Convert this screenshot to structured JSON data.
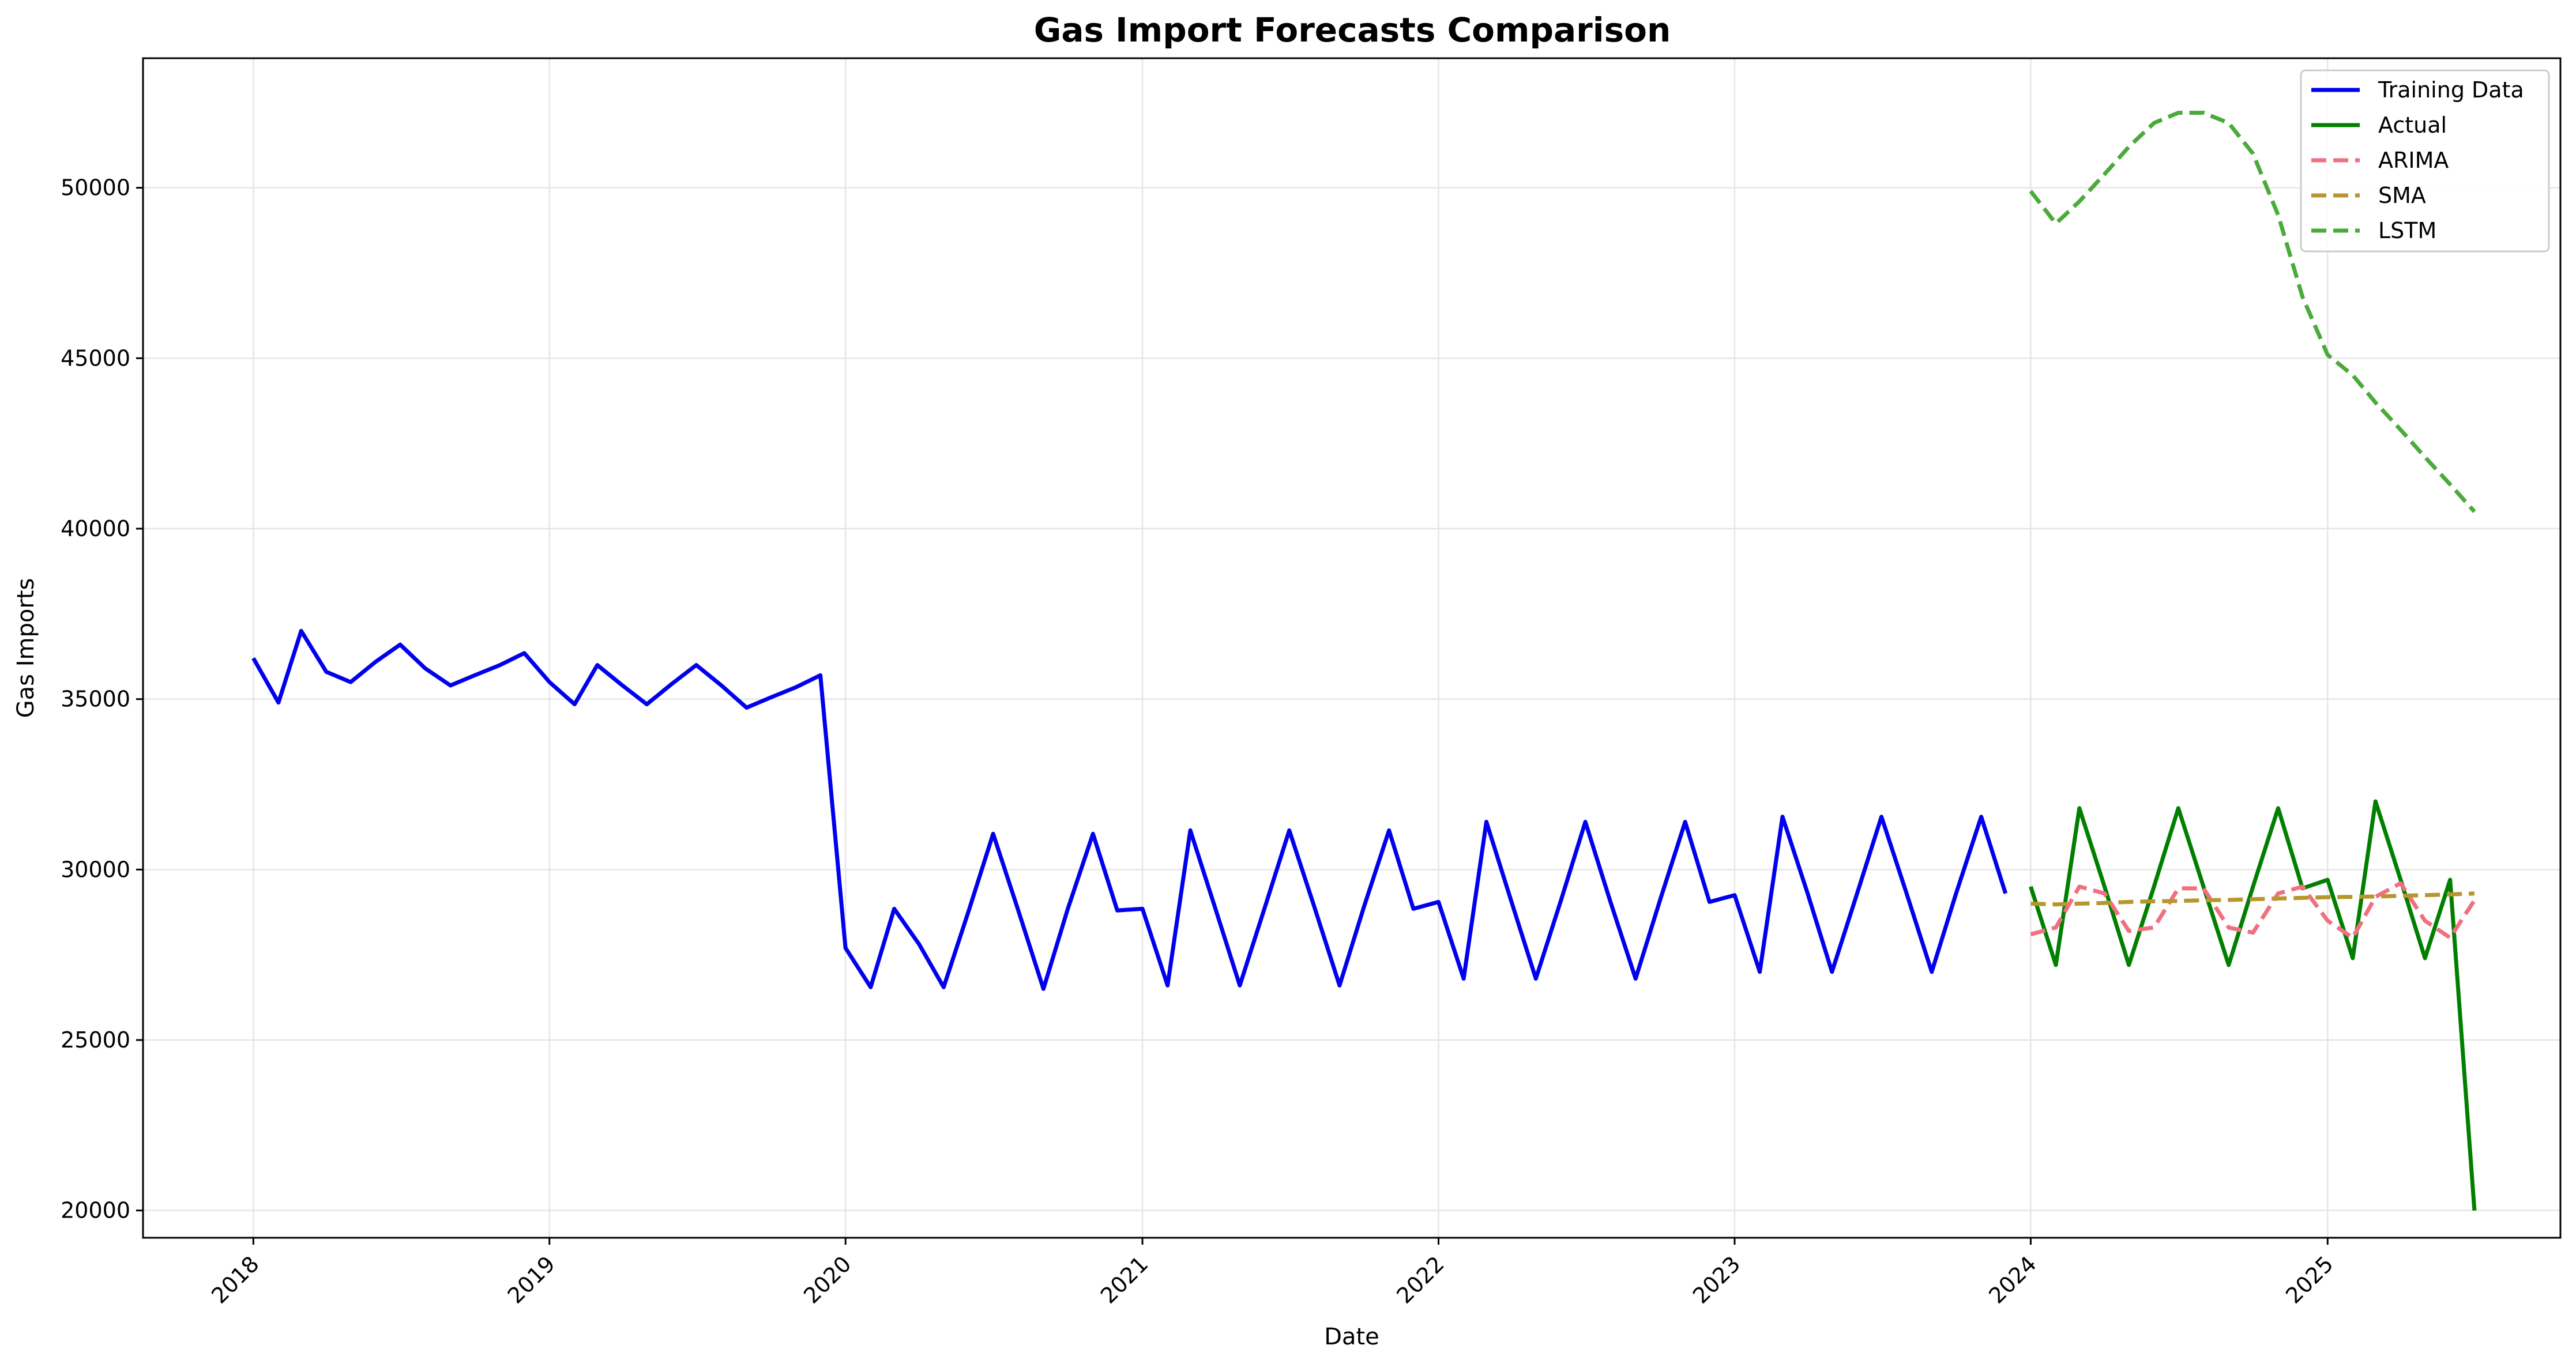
{
  "colors": {
    "training": "#0000ee",
    "actual": "#007f00",
    "arima": "#f07080",
    "sma": "#b8962e",
    "lstm": "#4aaa3a",
    "grid": "#e6e6e6"
  },
  "chart_data": {
    "type": "line",
    "title": "Gas Import Forecasts Comparison",
    "xlabel": "Date",
    "ylabel": "Gas Imports",
    "x_ticks": [
      "2018",
      "2019",
      "2020",
      "2021",
      "2022",
      "2023",
      "2024",
      "2025"
    ],
    "y_ticks": [
      "20000",
      "25000",
      "30000",
      "35000",
      "40000",
      "45000",
      "50000"
    ],
    "xlim": [
      "2017-08-18",
      "2025-10-15"
    ],
    "ylim": [
      19200,
      53800
    ],
    "grid": true,
    "legend_position": "top-right",
    "series": [
      {
        "name": "Training Data",
        "style": "solid",
        "color_key": "training",
        "x": [
          "2018-01",
          "2018-02",
          "2018-03",
          "2018-04",
          "2018-05",
          "2018-06",
          "2018-07",
          "2018-08",
          "2018-09",
          "2018-10",
          "2018-11",
          "2018-12",
          "2019-01",
          "2019-02",
          "2019-03",
          "2019-04",
          "2019-05",
          "2019-06",
          "2019-07",
          "2019-08",
          "2019-09",
          "2019-10",
          "2019-11",
          "2019-12",
          "2020-01",
          "2020-02",
          "2020-03",
          "2020-04",
          "2020-05",
          "2020-06",
          "2020-07",
          "2020-08",
          "2020-09",
          "2020-10",
          "2020-11",
          "2020-12",
          "2021-01",
          "2021-02",
          "2021-03",
          "2021-04",
          "2021-05",
          "2021-06",
          "2021-07",
          "2021-08",
          "2021-09",
          "2021-10",
          "2021-11",
          "2021-12",
          "2022-01",
          "2022-02",
          "2022-03",
          "2022-04",
          "2022-05",
          "2022-06",
          "2022-07",
          "2022-08",
          "2022-09",
          "2022-10",
          "2022-11",
          "2022-12",
          "2023-01",
          "2023-02",
          "2023-03",
          "2023-04",
          "2023-05",
          "2023-06",
          "2023-07",
          "2023-08",
          "2023-09",
          "2023-10",
          "2023-11",
          "2023-12"
        ],
        "values": [
          36200,
          34900,
          37000,
          35800,
          35500,
          36100,
          36600,
          35900,
          35400,
          35700,
          36000,
          36350,
          35500,
          34850,
          36000,
          35400,
          34850,
          35450,
          36000,
          35400,
          34750,
          35050,
          35350,
          35700,
          27700,
          26550,
          28850,
          27800,
          26550,
          28800,
          31050,
          28800,
          26500,
          28850,
          31050,
          28800,
          28850,
          26600,
          31150,
          28850,
          26600,
          28900,
          31150,
          28900,
          26600,
          28900,
          31150,
          28850,
          29050,
          26800,
          31400,
          29050,
          26800,
          29100,
          31400,
          29050,
          26800,
          29100,
          31400,
          29050,
          29250,
          27000,
          31550,
          29300,
          27000,
          29300,
          31550,
          29300,
          27000,
          29300,
          31550,
          29300
        ]
      },
      {
        "name": "Actual",
        "style": "solid",
        "color_key": "actual",
        "x": [
          "2024-01",
          "2024-02",
          "2024-03",
          "2024-04",
          "2024-05",
          "2024-06",
          "2024-07",
          "2024-08",
          "2024-09",
          "2024-10",
          "2024-11",
          "2024-12",
          "2025-01",
          "2025-02",
          "2025-03",
          "2025-04",
          "2025-05",
          "2025-06",
          "2025-07"
        ],
        "values": [
          29500,
          27200,
          31800,
          29500,
          27200,
          29500,
          31800,
          29500,
          27200,
          29500,
          31800,
          29450,
          29700,
          27400,
          32000,
          29700,
          27400,
          29700,
          20000
        ]
      },
      {
        "name": "ARIMA",
        "style": "dashed",
        "color_key": "arima",
        "x": [
          "2024-01",
          "2024-02",
          "2024-03",
          "2024-04",
          "2024-05",
          "2024-06",
          "2024-07",
          "2024-08",
          "2024-09",
          "2024-10",
          "2024-11",
          "2024-12",
          "2025-01",
          "2025-02",
          "2025-03",
          "2025-04",
          "2025-05",
          "2025-06",
          "2025-07"
        ],
        "values": [
          28100,
          28300,
          29500,
          29300,
          28200,
          28300,
          29450,
          29450,
          28300,
          28150,
          29300,
          29500,
          28500,
          28000,
          29200,
          29600,
          28500,
          28000,
          29100
        ]
      },
      {
        "name": "SMA",
        "style": "dashed",
        "color_key": "sma",
        "x": [
          "2024-01",
          "2024-02",
          "2024-03",
          "2024-04",
          "2024-05",
          "2024-06",
          "2024-07",
          "2024-08",
          "2024-09",
          "2024-10",
          "2024-11",
          "2024-12",
          "2025-01",
          "2025-02",
          "2025-03",
          "2025-04",
          "2025-05",
          "2025-06",
          "2025-07"
        ],
        "values": [
          29000,
          28980,
          29000,
          29020,
          29050,
          29070,
          29080,
          29100,
          29110,
          29130,
          29150,
          29170,
          29190,
          29200,
          29210,
          29230,
          29250,
          29270,
          29300
        ]
      },
      {
        "name": "LSTM",
        "style": "dashed",
        "color_key": "lstm",
        "x": [
          "2024-01",
          "2024-02",
          "2024-03",
          "2024-04",
          "2024-05",
          "2024-06",
          "2024-07",
          "2024-08",
          "2024-09",
          "2024-10",
          "2024-11",
          "2024-12",
          "2025-01",
          "2025-02",
          "2025-03",
          "2025-04",
          "2025-05",
          "2025-06",
          "2025-07"
        ],
        "values": [
          49900,
          48950,
          49600,
          50400,
          51200,
          51900,
          52200,
          52200,
          51900,
          51000,
          49200,
          46800,
          45100,
          44500,
          43700,
          42900,
          42100,
          41300,
          40500
        ]
      }
    ]
  }
}
